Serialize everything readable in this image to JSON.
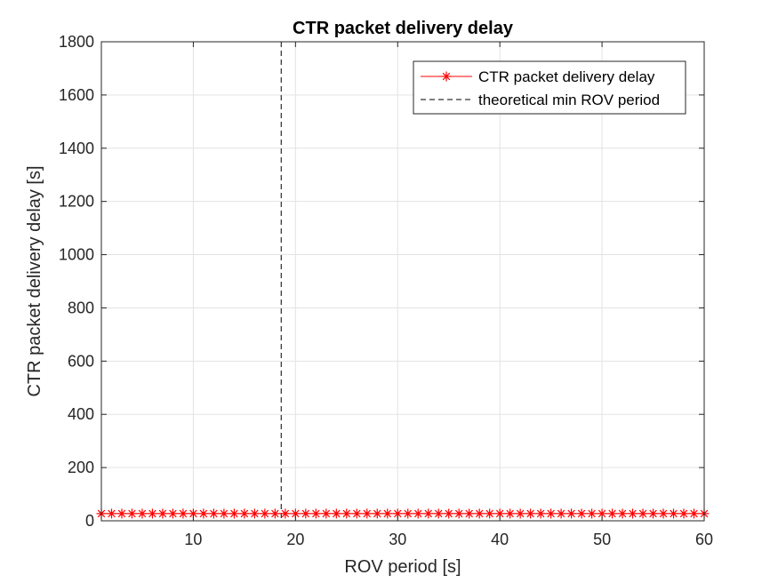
{
  "chart_data": {
    "type": "line",
    "title": "CTR packet delivery delay",
    "xlabel": "ROV period [s]",
    "ylabel": "CTR packet delivery delay [s]",
    "xlim": [
      1,
      60
    ],
    "ylim": [
      0,
      1800
    ],
    "xticks": [
      10,
      20,
      30,
      40,
      50,
      60
    ],
    "yticks": [
      0,
      200,
      400,
      600,
      800,
      1000,
      1200,
      1400,
      1600,
      1800
    ],
    "grid": true,
    "legend_position": "top-right",
    "series": [
      {
        "name": "CTR packet delivery delay",
        "style": "solid",
        "marker": "*",
        "color": "#ff0000",
        "x": [
          1,
          2,
          3,
          4,
          5,
          6,
          7,
          8,
          9,
          10,
          11,
          12,
          13,
          14,
          15,
          16,
          17,
          18,
          19,
          20,
          21,
          22,
          23,
          24,
          25,
          26,
          27,
          28,
          29,
          30,
          31,
          32,
          33,
          34,
          35,
          36,
          37,
          38,
          39,
          40,
          41,
          42,
          43,
          44,
          45,
          46,
          47,
          48,
          49,
          50,
          51,
          52,
          53,
          54,
          55,
          56,
          57,
          58,
          59,
          60
        ],
        "y": [
          27,
          27,
          27,
          27,
          27,
          27,
          27,
          27,
          27,
          27,
          27,
          27,
          27,
          27,
          27,
          27,
          27,
          27,
          27,
          27,
          27,
          27,
          27,
          27,
          27,
          27,
          27,
          27,
          27,
          27,
          27,
          27,
          27,
          27,
          27,
          27,
          27,
          27,
          27,
          27,
          27,
          27,
          27,
          27,
          27,
          27,
          27,
          27,
          27,
          27,
          27,
          27,
          27,
          27,
          27,
          27,
          27,
          27,
          27,
          27
        ]
      },
      {
        "name": "theoretical min ROV period",
        "style": "dashed",
        "color": "#000000",
        "x_value": 18.6
      }
    ]
  }
}
